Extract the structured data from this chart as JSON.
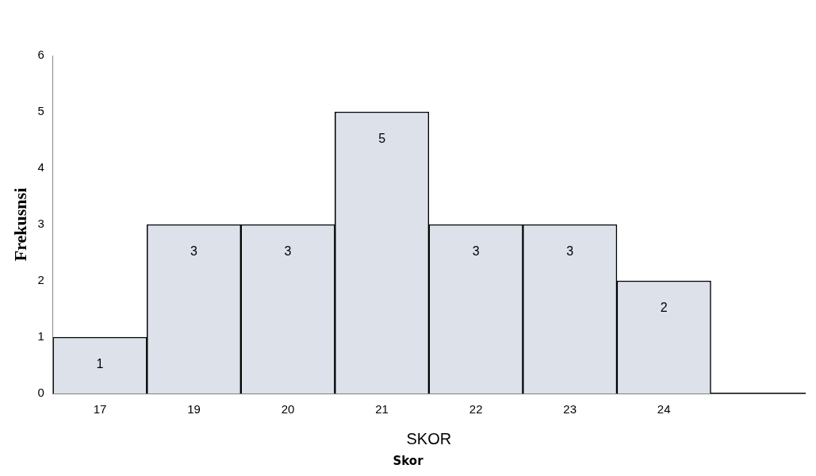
{
  "chart_data": {
    "type": "bar",
    "categories": [
      "17",
      "19",
      "20",
      "21",
      "22",
      "23",
      "24",
      null
    ],
    "values": [
      1,
      3,
      3,
      5,
      3,
      3,
      2,
      null
    ],
    "color": "#dce1ea",
    "ylim": [
      0,
      6
    ],
    "yticks": [
      0,
      1,
      2,
      3,
      4,
      5,
      6
    ],
    "grid": false,
    "legend": false,
    "data_labels": true,
    "xlabel": "SKOR",
    "ylabel": "Frekusnsi",
    "annotations": [
      "Skor"
    ]
  }
}
